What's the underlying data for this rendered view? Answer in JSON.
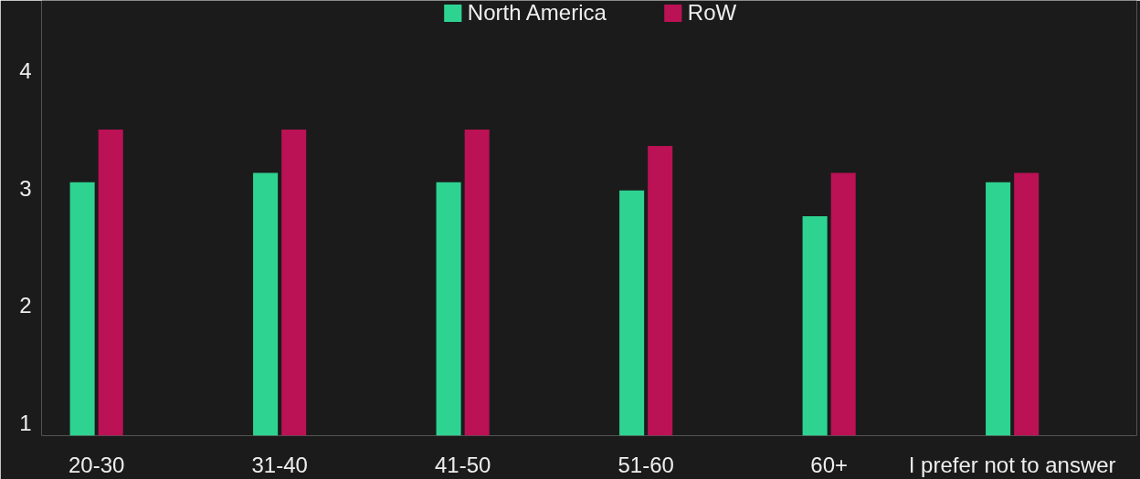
{
  "chart_data": {
    "type": "bar",
    "categories": [
      "20-30",
      "31-40",
      "41-50",
      "51-60",
      "60+",
      "I prefer not to answer"
    ],
    "series": [
      {
        "name": "North America",
        "color": "#2ed391",
        "values": [
          3.05,
          3.13,
          3.05,
          2.98,
          2.76,
          3.05
        ]
      },
      {
        "name": "RoW",
        "color": "#bb1155",
        "values": [
          3.5,
          3.5,
          3.5,
          3.36,
          3.13,
          3.13
        ]
      }
    ],
    "ylim": [
      0.89,
      4.6
    ],
    "yticks": [
      1,
      2,
      3,
      4
    ],
    "grid": false,
    "legend": "top"
  }
}
